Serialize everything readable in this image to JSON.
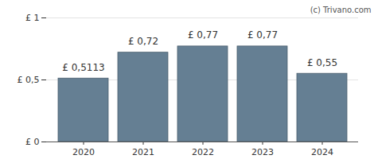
{
  "chart_data": {
    "type": "bar",
    "annotations": [
      "(c) Trivano.com"
    ],
    "categories": [
      "2020",
      "2021",
      "2022",
      "2023",
      "2024"
    ],
    "values": [
      0.5113,
      0.72,
      0.77,
      0.77,
      0.55
    ],
    "value_labels": [
      "£ 0,5113",
      "£ 0,72",
      "£ 0,77",
      "£ 0,77",
      "£ 0,55"
    ],
    "data_labels": true,
    "color": "#657f93",
    "ylim": [
      0,
      1
    ],
    "yticks": [
      {
        "value": 0,
        "label": "£ 0"
      },
      {
        "value": 0.5,
        "label": "£ 0,5"
      },
      {
        "value": 1,
        "label": "£ 1"
      }
    ],
    "grid": true
  }
}
